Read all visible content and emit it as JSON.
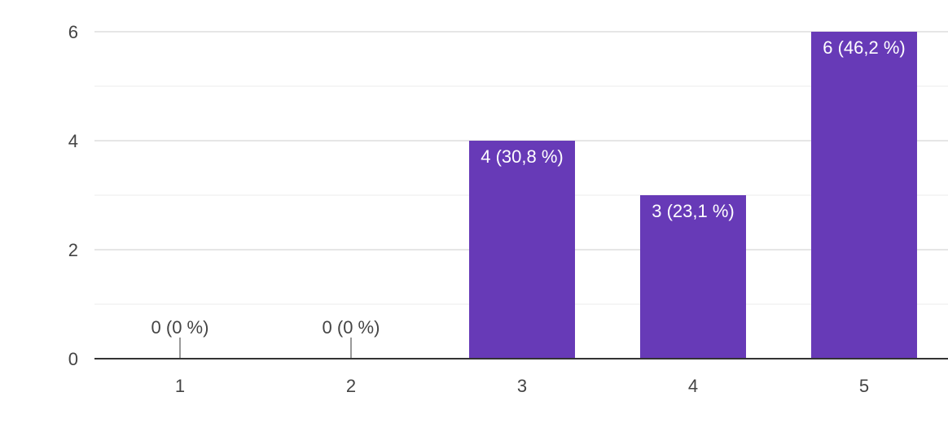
{
  "chart_data": {
    "type": "bar",
    "title": "",
    "xlabel": "",
    "ylabel": "",
    "categories": [
      "1",
      "2",
      "3",
      "4",
      "5"
    ],
    "values": [
      0,
      0,
      4,
      3,
      6
    ],
    "data_labels": [
      "0 (0 %)",
      "0 (0 %)",
      "4 (30,8 %)",
      "3 (23,1 %)",
      "6 (46,2 %)"
    ],
    "ylim": [
      0,
      6
    ],
    "yticks": [
      0,
      2,
      4,
      6
    ],
    "grid": true,
    "legend": "none",
    "bar_color": "#673ab7"
  }
}
